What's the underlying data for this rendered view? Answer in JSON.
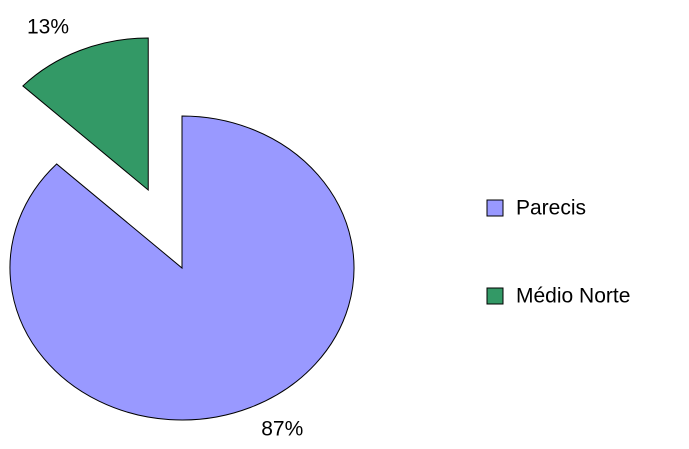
{
  "chart_data": {
    "type": "pie",
    "categories": [
      "Parecis",
      "Médio Norte"
    ],
    "values": [
      87,
      13
    ],
    "value_labels": [
      "87%",
      "13%"
    ],
    "colors": [
      "#9999ff",
      "#339966"
    ],
    "exploded": [
      false,
      true
    ],
    "legend": "right"
  }
}
